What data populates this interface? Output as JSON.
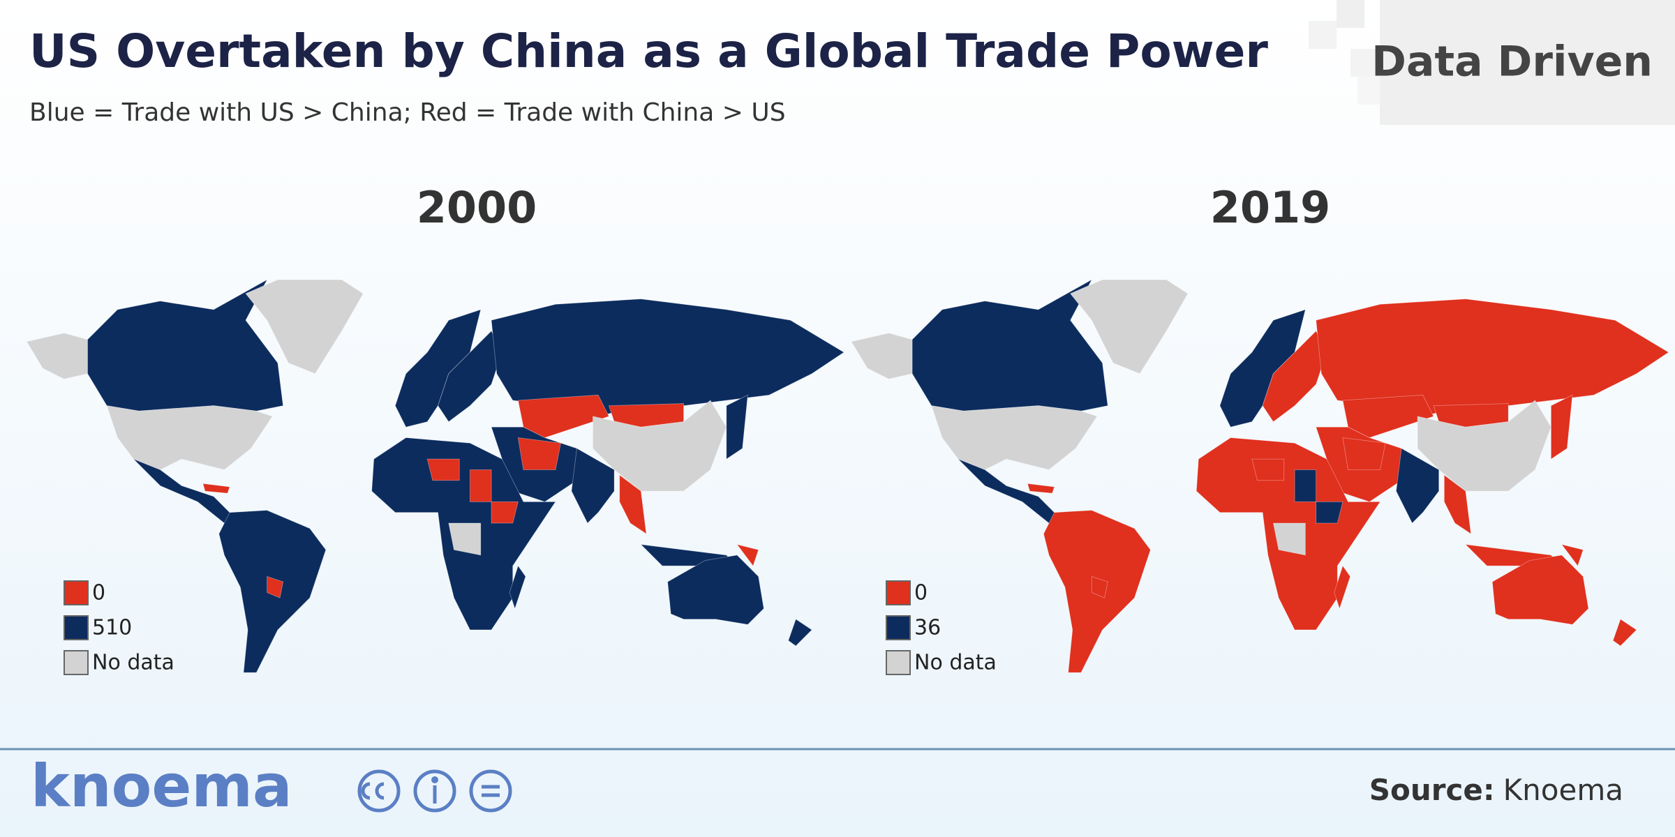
{
  "header": {
    "title": "US Overtaken by China as a Global Trade Power",
    "subtitle": "Blue = Trade with US > China; Red = Trade with China > US",
    "brand": "Data Driven"
  },
  "maps": [
    {
      "year": "2000",
      "legend": [
        {
          "label": "0",
          "color": "#e0301e"
        },
        {
          "label": "510",
          "color": "#0c2c5e"
        },
        {
          "label": "No data",
          "color": "#d3d3d3"
        }
      ]
    },
    {
      "year": "2019",
      "legend": [
        {
          "label": "0",
          "color": "#e0301e"
        },
        {
          "label": "36",
          "color": "#0c2c5e"
        },
        {
          "label": "No data",
          "color": "#d3d3d3"
        }
      ]
    }
  ],
  "footer": {
    "logo": "knoema",
    "source_label": "Source:",
    "source": "Knoema"
  }
}
